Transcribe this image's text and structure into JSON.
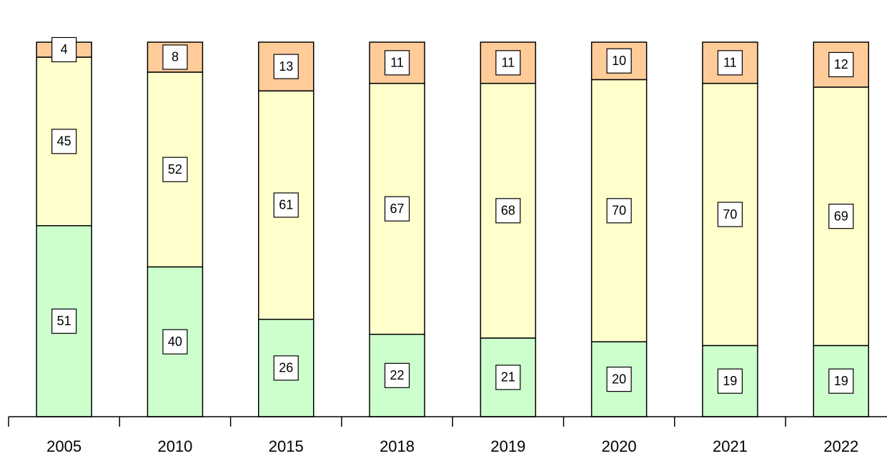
{
  "chart_data": {
    "type": "stacked_bar",
    "categories": [
      "2005",
      "2010",
      "2015",
      "2018",
      "2019",
      "2020",
      "2021",
      "2022"
    ],
    "series": [
      {
        "color": "#ccffcc",
        "values": [
          51,
          40,
          26,
          22,
          21,
          20,
          19,
          19
        ]
      },
      {
        "color": "#ffffcc",
        "values": [
          45,
          52,
          61,
          67,
          68,
          70,
          70,
          69
        ]
      },
      {
        "color": "#ffcc99",
        "values": [
          4,
          8,
          13,
          11,
          11,
          10,
          11,
          12
        ]
      }
    ],
    "ylim": [
      0,
      100
    ]
  }
}
